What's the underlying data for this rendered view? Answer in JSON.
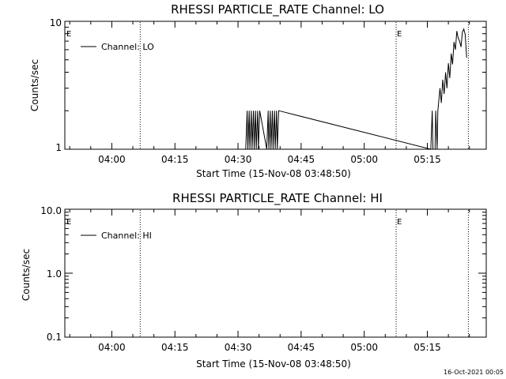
{
  "footer": {
    "timestamp": "16-Oct-2021 00:05"
  },
  "chart_data": [
    {
      "type": "line",
      "title": "RHESSI PARTICLE_RATE Channel: LO",
      "xlabel": "Start Time (15-Nov-08 03:48:50)",
      "ylabel": "Counts/sec",
      "xlim": [
        "03:48:50",
        "05:29:00"
      ],
      "ylim": [
        1,
        10
      ],
      "yscale": "log",
      "xticks": [
        "04:00",
        "04:15",
        "04:30",
        "04:45",
        "05:00",
        "05:15"
      ],
      "yticks": [
        "1",
        "10"
      ],
      "legend": {
        "position": "top-left",
        "entries": [
          "Channel: LO"
        ]
      },
      "markers": [
        {
          "time": "04:06:45",
          "label": "E"
        },
        {
          "time": "05:07:35",
          "label": "E"
        },
        {
          "time": "05:24:45",
          "label": ""
        }
      ],
      "series": [
        {
          "name": "Channel: LO",
          "x": [
            "04:31:50",
            "04:32:10",
            "04:32:20",
            "04:32:40",
            "04:32:50",
            "04:33:10",
            "04:33:20",
            "04:33:40",
            "04:33:50",
            "04:34:10",
            "04:34:20",
            "04:34:40",
            "04:34:50",
            "04:35:10",
            "04:36:50",
            "04:37:10",
            "04:37:20",
            "04:37:40",
            "04:37:50",
            "04:38:10",
            "04:38:20",
            "04:38:40",
            "04:38:50",
            "04:39:10",
            "04:39:20",
            "04:39:40",
            "05:15:50",
            "05:16:10",
            "05:16:20",
            "05:16:50",
            "05:17:00",
            "05:17:20",
            "05:17:30",
            "05:18:00",
            "05:18:20",
            "05:18:40",
            "05:19:00",
            "05:19:20",
            "05:19:40",
            "05:20:00",
            "05:20:20",
            "05:20:40",
            "05:21:00",
            "05:21:20",
            "05:21:40",
            "05:22:00",
            "05:22:20",
            "05:22:40",
            "05:23:00",
            "05:23:20",
            "05:23:40",
            "05:24:00",
            "05:24:20"
          ],
          "y": [
            1,
            2,
            1,
            2,
            1,
            2,
            1,
            2,
            1,
            2,
            1,
            2,
            1,
            2,
            1,
            2,
            1,
            2,
            1,
            2,
            1,
            2,
            1,
            2,
            1,
            2,
            1,
            2,
            1,
            1,
            2,
            1,
            2,
            3,
            2.3,
            3.5,
            2.7,
            4,
            3,
            4.7,
            3.6,
            5.6,
            4.6,
            6.9,
            6,
            8.4,
            7.4,
            7,
            6.3,
            8.2,
            8.7,
            7.9,
            5.2
          ]
        }
      ]
    },
    {
      "type": "line",
      "title": "RHESSI PARTICLE_RATE Channel: HI",
      "xlabel": "Start Time (15-Nov-08 03:48:50)",
      "ylabel": "Counts/sec",
      "xlim": [
        "03:48:50",
        "05:29:00"
      ],
      "ylim": [
        0.1,
        10
      ],
      "yscale": "log",
      "xticks": [
        "04:00",
        "04:15",
        "04:30",
        "04:45",
        "05:00",
        "05:15"
      ],
      "yticks": [
        "0.1",
        "1.0",
        "10.0"
      ],
      "legend": {
        "position": "top-left",
        "entries": [
          "Channel: HI"
        ]
      },
      "markers": [
        {
          "time": "04:06:45",
          "label": "E"
        },
        {
          "time": "05:07:35",
          "label": "E"
        },
        {
          "time": "05:24:45",
          "label": ""
        }
      ],
      "series": [
        {
          "name": "Channel: HI",
          "x": [],
          "y": []
        }
      ]
    }
  ]
}
